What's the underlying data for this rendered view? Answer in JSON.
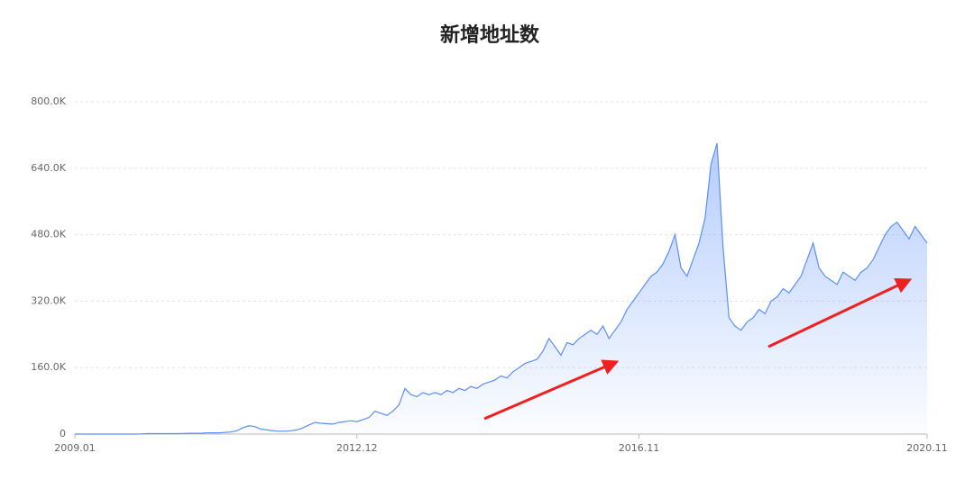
{
  "chart_data": {
    "type": "line",
    "title": "新增地址数",
    "categories": [
      "2009.01",
      null,
      null,
      null,
      null,
      null,
      null,
      null,
      null,
      null,
      null,
      null,
      null,
      null,
      null,
      null,
      null,
      null,
      null,
      null,
      null,
      null,
      null,
      null,
      null,
      null,
      null,
      null,
      null,
      null,
      null,
      null,
      null,
      null,
      null,
      null,
      null,
      null,
      null,
      null,
      null,
      null,
      null,
      null,
      null,
      null,
      null,
      "2012.12",
      null,
      null,
      null,
      null,
      null,
      null,
      null,
      null,
      null,
      null,
      null,
      null,
      null,
      null,
      null,
      null,
      null,
      null,
      null,
      null,
      null,
      null,
      null,
      null,
      null,
      null,
      null,
      null,
      null,
      null,
      null,
      null,
      null,
      null,
      null,
      null,
      null,
      null,
      null,
      null,
      null,
      null,
      null,
      null,
      null,
      null,
      "2016.11",
      null,
      null,
      null,
      null,
      null,
      null,
      null,
      null,
      null,
      null,
      null,
      null,
      null,
      null,
      null,
      null,
      null,
      null,
      null,
      null,
      null,
      null,
      null,
      null,
      null,
      null,
      null,
      null,
      null,
      null,
      null,
      null,
      null,
      null,
      null,
      null,
      null,
      null,
      null,
      null,
      null,
      null,
      null,
      null,
      null,
      null,
      null,
      "2020.11"
    ],
    "series": [
      {
        "color": "#5b8ff9",
        "values": [
          0,
          0,
          0,
          0,
          0,
          0,
          0,
          0,
          0,
          0,
          0,
          500,
          1000,
          1000,
          1000,
          1000,
          1000,
          1000,
          1500,
          2000,
          2000,
          2000,
          3000,
          3000,
          3000,
          4000,
          5000,
          8000,
          15000,
          20000,
          18000,
          12000,
          10000,
          8000,
          7000,
          7000,
          8000,
          10000,
          15000,
          22000,
          28000,
          26000,
          25000,
          24000,
          28000,
          30000,
          32000,
          30000,
          35000,
          40000,
          55000,
          50000,
          45000,
          55000,
          70000,
          110000,
          95000,
          90000,
          100000,
          95000,
          100000,
          95000,
          105000,
          100000,
          110000,
          105000,
          115000,
          110000,
          120000,
          125000,
          130000,
          140000,
          135000,
          150000,
          160000,
          170000,
          175000,
          180000,
          200000,
          230000,
          210000,
          190000,
          220000,
          215000,
          230000,
          240000,
          250000,
          240000,
          260000,
          230000,
          250000,
          270000,
          300000,
          320000,
          340000,
          360000,
          380000,
          390000,
          410000,
          440000,
          480000,
          400000,
          380000,
          420000,
          460000,
          520000,
          650000,
          700000,
          450000,
          280000,
          260000,
          250000,
          270000,
          280000,
          300000,
          290000,
          320000,
          330000,
          350000,
          340000,
          360000,
          380000,
          420000,
          460000,
          400000,
          380000,
          370000,
          360000,
          390000,
          380000,
          370000,
          390000,
          400000,
          420000,
          450000,
          480000,
          500000,
          510000,
          490000,
          470000,
          500000,
          480000,
          460000
        ]
      }
    ],
    "ylim": [
      0,
      800000
    ],
    "yticks": [
      0,
      {
        "value": 160000,
        "label": "160.0K"
      },
      {
        "value": 320000,
        "label": "320.0K"
      },
      {
        "value": 480000,
        "label": "480.0K"
      },
      {
        "value": 640000,
        "label": "640.0K"
      },
      {
        "value": 800000,
        "label": "800.0K"
      }
    ],
    "grid": true
  }
}
